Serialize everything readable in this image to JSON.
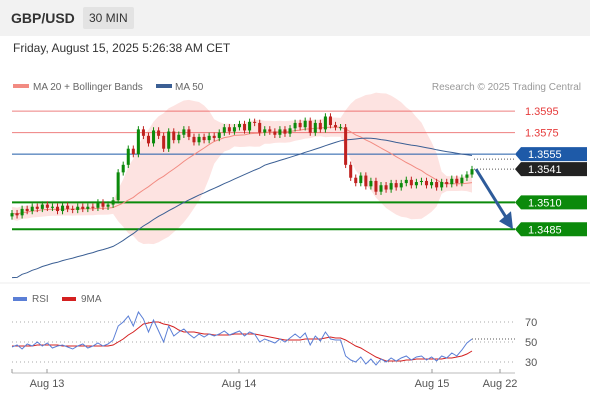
{
  "header": {
    "symbol": "GBP/USD",
    "timeframe": "30 MIN",
    "datetime": "Friday, August 15, 2025 5:26:38 AM CET"
  },
  "legend": {
    "ma20": {
      "label": "MA 20 + Bollinger Bands",
      "color": "#f28b82"
    },
    "ma50": {
      "label": "MA 50",
      "color": "#3b5f94"
    },
    "credit": "Research © 2025 Trading Central"
  },
  "chart_data": [
    {
      "type": "candlestick",
      "title": "",
      "ylim": [
        1.3435,
        1.361
      ],
      "x_labels": [
        "Aug 13",
        "Aug 14",
        "Aug 15",
        "Aug 22"
      ],
      "levels": [
        {
          "value": 1.3595,
          "label": "1.3595",
          "kind": "resistance",
          "color": "#e63b3b"
        },
        {
          "value": 1.3575,
          "label": "1.3575",
          "kind": "resistance",
          "color": "#e63b3b"
        },
        {
          "value": 1.3555,
          "label": "1.3555",
          "kind": "pivot",
          "color": "#1e5aa8"
        },
        {
          "value": 1.351,
          "label": "1.3510",
          "kind": "support",
          "color": "#0b8a0b"
        },
        {
          "value": 1.3485,
          "label": "1.3485",
          "kind": "support",
          "color": "#0b8a0b"
        }
      ],
      "current_price": {
        "value": 1.3541,
        "label": "1.3541"
      },
      "colors": {
        "up": "#0b8a0b",
        "down": "#c0211f",
        "band": "#fde3e1"
      },
      "forecast": {
        "direction": "down",
        "from": 1.3541,
        "to": 1.3485,
        "color": "#2e5b9a"
      },
      "closes": [
        1.35,
        1.3498,
        1.3504,
        1.3502,
        1.3506,
        1.3504,
        1.3508,
        1.3505,
        1.3506,
        1.3502,
        1.3507,
        1.3504,
        1.3503,
        1.3506,
        1.3504,
        1.3506,
        1.3505,
        1.351,
        1.3506,
        1.3508,
        1.3512,
        1.3538,
        1.3545,
        1.356,
        1.3555,
        1.3578,
        1.3572,
        1.3565,
        1.3577,
        1.3572,
        1.356,
        1.3576,
        1.3568,
        1.3573,
        1.3578,
        1.3571,
        1.3566,
        1.3571,
        1.3568,
        1.3572,
        1.357,
        1.3575,
        1.358,
        1.3576,
        1.358,
        1.3583,
        1.3577,
        1.3585,
        1.3584,
        1.3575,
        1.3578,
        1.3576,
        1.3573,
        1.3578,
        1.3574,
        1.3579,
        1.3584,
        1.358,
        1.3586,
        1.3575,
        1.3584,
        1.3578,
        1.359,
        1.3582,
        1.358,
        1.358,
        1.3545,
        1.3533,
        1.3528,
        1.3535,
        1.3525,
        1.353,
        1.352,
        1.3526,
        1.3522,
        1.3528,
        1.3524,
        1.3528,
        1.3531,
        1.3526,
        1.3529,
        1.353,
        1.3526,
        1.3529,
        1.3524,
        1.3529,
        1.3527,
        1.3532,
        1.3528,
        1.3533,
        1.3536,
        1.3541
      ]
    },
    {
      "type": "line",
      "title": "",
      "series": [
        {
          "name": "RSI",
          "color": "#5b7fd6"
        },
        {
          "name": "9MA",
          "color": "#d42020"
        }
      ],
      "ylim": [
        20,
        80
      ],
      "y_ticks": [
        70,
        50,
        30
      ],
      "rsi": [
        45,
        47,
        43,
        48,
        46,
        50,
        46,
        49,
        44,
        46,
        47,
        45,
        43,
        46,
        48,
        44,
        46,
        49,
        46,
        48,
        52,
        66,
        70,
        76,
        66,
        80,
        73,
        60,
        72,
        61,
        50,
        66,
        56,
        60,
        63,
        58,
        54,
        58,
        55,
        58,
        56,
        58,
        61,
        57,
        59,
        61,
        56,
        60,
        58,
        50,
        53,
        51,
        49,
        53,
        50,
        54,
        58,
        54,
        59,
        47,
        56,
        51,
        60,
        53,
        52,
        52,
        36,
        32,
        30,
        35,
        28,
        33,
        27,
        33,
        30,
        34,
        31,
        34,
        36,
        32,
        35,
        36,
        32,
        35,
        31,
        36,
        34,
        39,
        36,
        42,
        49,
        53
      ],
      "ma9": [
        46,
        46,
        46,
        46,
        46,
        47,
        47,
        47,
        47,
        47,
        46,
        46,
        46,
        46,
        46,
        46,
        46,
        46,
        46,
        46,
        47,
        50,
        53,
        57,
        60,
        64,
        68,
        69,
        70,
        70,
        68,
        67,
        65,
        62,
        60,
        60,
        60,
        59,
        58,
        58,
        57,
        57,
        57,
        57,
        58,
        58,
        58,
        58,
        58,
        57,
        56,
        55,
        54,
        53,
        52,
        52,
        52,
        52,
        53,
        53,
        53,
        53,
        54,
        55,
        54,
        54,
        52,
        49,
        46,
        44,
        41,
        38,
        35,
        33,
        31,
        31,
        31,
        31,
        32,
        32,
        33,
        33,
        33,
        33,
        33,
        33,
        34,
        34,
        35,
        36,
        38,
        41
      ]
    }
  ]
}
